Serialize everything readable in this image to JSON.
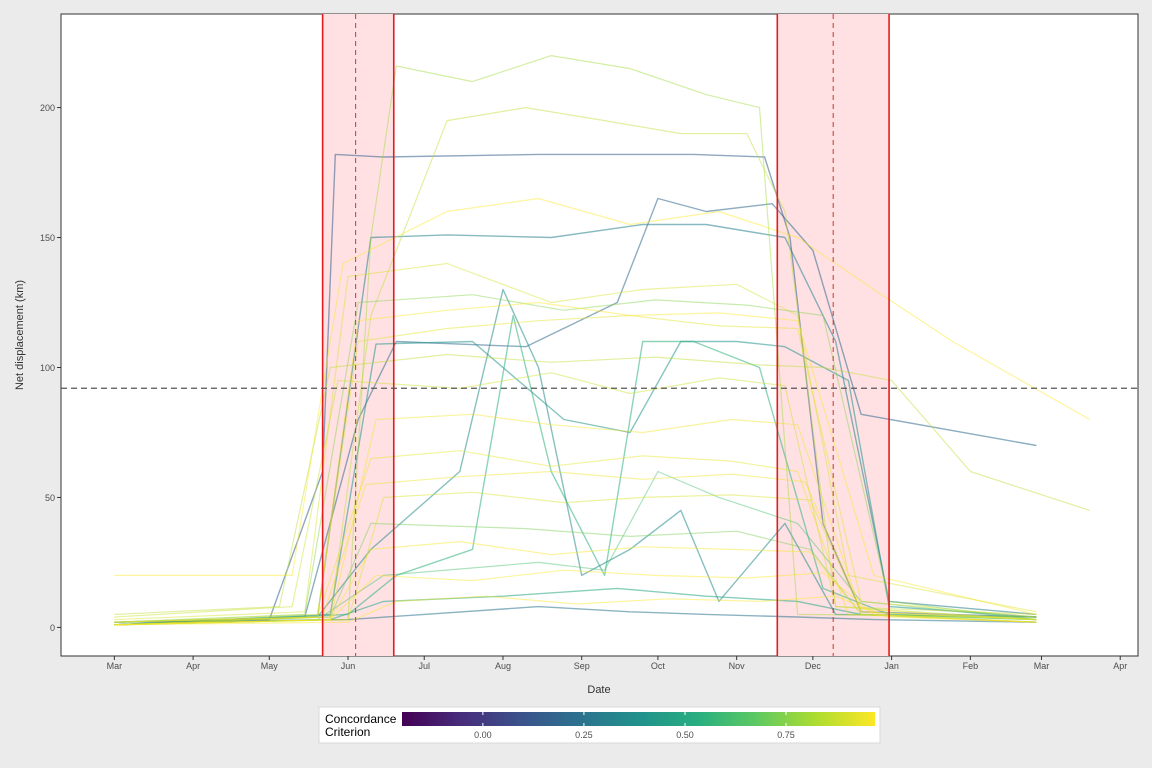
{
  "chart_data": {
    "type": "line",
    "title": "",
    "xlabel": "Date",
    "ylabel": "Net displacement (km)",
    "x_tick_labels": [
      "Mar",
      "Apr",
      "May",
      "Jun",
      "Jul",
      "Aug",
      "Sep",
      "Oct",
      "Nov",
      "Dec",
      "Jan",
      "Feb",
      "Mar",
      "Apr"
    ],
    "x_tick_dates": [
      "2013-03-01",
      "2013-04-01",
      "2013-05-01",
      "2013-06-01",
      "2013-07-01",
      "2013-08-01",
      "2013-09-01",
      "2013-10-01",
      "2013-11-01",
      "2013-12-01",
      "2014-01-01",
      "2014-02-01",
      "2014-03-01",
      "2014-04-01"
    ],
    "xlim": [
      "2013-02-08",
      "2014-04-08"
    ],
    "y_ticks": [
      0,
      50,
      100,
      150,
      200
    ],
    "ylim": [
      -11,
      236
    ],
    "grid": false,
    "reference_lines": {
      "horizontal_y": 92,
      "vertical_dashed": [
        "2013-06-04",
        "2013-12-09"
      ]
    },
    "shaded_windows": [
      {
        "start": "2013-05-22",
        "end": "2013-06-19"
      },
      {
        "start": "2013-11-17",
        "end": "2013-12-31"
      }
    ],
    "legend": {
      "title": "Concordance Criterion",
      "position": "bottom",
      "colorbar_min": -0.2,
      "colorbar_max": 0.97,
      "ticks": [
        "0.00",
        "0.25",
        "0.50",
        "0.75"
      ],
      "tick_values": [
        0,
        0.25,
        0.5,
        0.75
      ],
      "colors": [
        "#440154",
        "#472d7b",
        "#3b528b",
        "#2c728e",
        "#21918c",
        "#28ae80",
        "#5ec962",
        "#addc30",
        "#fde725"
      ]
    },
    "series": [
      {
        "concordance": 0.15,
        "x": [
          "2013-03-01",
          "2013-05-01",
          "2013-05-22",
          "2013-05-27",
          "2013-06-15",
          "2013-08-15",
          "2013-10-15",
          "2013-11-12",
          "2013-11-22",
          "2013-12-05",
          "2013-12-20",
          "2014-02-27"
        ],
        "y": [
          1,
          3,
          60,
          182,
          181,
          182,
          182,
          181,
          150,
          40,
          6,
          4
        ]
      },
      {
        "concordance": 0.2,
        "x": [
          "2013-03-01",
          "2013-05-15",
          "2013-06-05",
          "2013-06-20",
          "2013-08-10",
          "2013-09-15",
          "2013-10-01",
          "2013-10-20",
          "2013-11-15",
          "2013-12-01",
          "2013-12-20",
          "2014-02-27"
        ],
        "y": [
          1,
          4,
          80,
          110,
          108,
          125,
          165,
          160,
          163,
          145,
          82,
          70
        ]
      },
      {
        "concordance": 0.3,
        "x": [
          "2013-03-01",
          "2013-05-20",
          "2013-06-10",
          "2013-07-10",
          "2013-08-20",
          "2013-09-25",
          "2013-10-20",
          "2013-11-20",
          "2013-12-10",
          "2013-12-31",
          "2014-02-27"
        ],
        "y": [
          1,
          4,
          150,
          151,
          150,
          155,
          155,
          150,
          110,
          10,
          5
        ]
      },
      {
        "concordance": 0.4,
        "x": [
          "2013-03-01",
          "2013-05-25",
          "2013-06-12",
          "2013-07-20",
          "2013-08-25",
          "2013-09-20",
          "2013-10-10",
          "2013-11-01",
          "2013-11-20",
          "2013-12-15",
          "2013-12-31",
          "2014-02-27"
        ],
        "y": [
          1,
          5,
          109,
          110,
          80,
          75,
          110,
          110,
          108,
          95,
          8,
          4
        ]
      },
      {
        "concordance": 0.55,
        "x": [
          "2013-03-01",
          "2013-06-01",
          "2013-06-20",
          "2013-07-20",
          "2013-08-05",
          "2013-08-20",
          "2013-09-10",
          "2013-09-25",
          "2013-10-15",
          "2013-11-10",
          "2013-12-05",
          "2013-12-31",
          "2014-02-27"
        ],
        "y": [
          1,
          5,
          20,
          30,
          120,
          60,
          20,
          110,
          110,
          100,
          15,
          5,
          3
        ]
      },
      {
        "concordance": 0.35,
        "x": [
          "2013-03-01",
          "2013-05-20",
          "2013-06-10",
          "2013-07-15",
          "2013-08-01",
          "2013-08-15",
          "2013-09-01",
          "2013-09-20",
          "2013-10-10",
          "2013-10-25",
          "2013-11-20",
          "2013-12-10",
          "2014-02-27"
        ],
        "y": [
          2,
          4,
          30,
          60,
          130,
          100,
          20,
          30,
          45,
          10,
          40,
          5,
          4
        ]
      },
      {
        "concordance": 0.5,
        "x": [
          "2013-03-01",
          "2013-05-25",
          "2013-06-15",
          "2013-08-01",
          "2013-09-15",
          "2013-10-20",
          "2013-11-25",
          "2013-12-20",
          "2014-02-27"
        ],
        "y": [
          1,
          3,
          10,
          12,
          15,
          12,
          10,
          5,
          2
        ]
      },
      {
        "concordance": 0.25,
        "x": [
          "2013-03-01",
          "2013-06-01",
          "2013-07-01",
          "2013-08-15",
          "2013-09-20",
          "2013-10-20",
          "2013-11-25",
          "2013-12-25",
          "2014-02-27"
        ],
        "y": [
          2,
          3,
          5,
          8,
          6,
          5,
          4,
          3,
          2
        ]
      },
      {
        "concordance": 0.62,
        "x": [
          "2013-03-01",
          "2013-05-20",
          "2013-06-15",
          "2013-08-15",
          "2013-09-10",
          "2013-10-01",
          "2013-10-25",
          "2013-11-25",
          "2013-12-20",
          "2014-02-27"
        ],
        "y": [
          1,
          3,
          20,
          25,
          22,
          60,
          50,
          40,
          10,
          3
        ]
      },
      {
        "concordance": 0.72,
        "x": [
          "2013-03-01",
          "2013-05-25",
          "2013-06-10",
          "2013-08-10",
          "2013-09-20",
          "2013-11-01",
          "2013-11-30",
          "2013-12-20",
          "2014-02-27"
        ],
        "y": [
          2,
          4,
          40,
          38,
          35,
          37,
          30,
          5,
          3
        ]
      },
      {
        "concordance": 0.8,
        "x": [
          "2013-03-01",
          "2013-06-01",
          "2013-06-10",
          "2013-06-20",
          "2013-07-20",
          "2013-08-20",
          "2013-09-20",
          "2013-10-20",
          "2013-11-10",
          "2013-11-25",
          "2014-02-27"
        ],
        "y": [
          1,
          3,
          150,
          216,
          210,
          220,
          215,
          205,
          200,
          5,
          4
        ]
      },
      {
        "concordance": 0.85,
        "x": [
          "2013-03-01",
          "2013-05-25",
          "2013-06-10",
          "2013-07-10",
          "2013-08-10",
          "2013-09-10",
          "2013-10-10",
          "2013-11-05",
          "2013-11-20",
          "2013-12-10",
          "2014-02-27"
        ],
        "y": [
          1,
          4,
          120,
          195,
          200,
          195,
          190,
          190,
          160,
          8,
          3
        ]
      },
      {
        "concordance": 0.9,
        "x": [
          "2013-03-01",
          "2013-05-15",
          "2013-06-01",
          "2013-07-10",
          "2013-08-20",
          "2013-09-25",
          "2013-11-01",
          "2013-11-25",
          "2013-12-15",
          "2014-02-27"
        ],
        "y": [
          3,
          6,
          135,
          140,
          125,
          130,
          132,
          120,
          20,
          6
        ]
      },
      {
        "concordance": 0.92,
        "x": [
          "2013-03-01",
          "2013-05-20",
          "2013-06-05",
          "2013-07-10",
          "2013-08-15",
          "2013-09-20",
          "2013-10-25",
          "2013-11-25",
          "2013-12-20",
          "2014-02-27"
        ],
        "y": [
          2,
          5,
          110,
          115,
          118,
          120,
          116,
          115,
          10,
          4
        ]
      },
      {
        "concordance": 0.88,
        "x": [
          "2013-03-01",
          "2013-05-10",
          "2013-05-28",
          "2013-07-15",
          "2013-08-20",
          "2013-09-20",
          "2013-10-25",
          "2013-11-20",
          "2013-12-10",
          "2014-02-27"
        ],
        "y": [
          4,
          8,
          95,
          92,
          98,
          90,
          96,
          93,
          8,
          5
        ]
      },
      {
        "concordance": 0.95,
        "x": [
          "2013-03-01",
          "2013-05-25",
          "2013-06-12",
          "2013-07-20",
          "2013-08-20",
          "2013-09-25",
          "2013-10-30",
          "2013-11-25",
          "2013-12-20",
          "2014-02-27"
        ],
        "y": [
          1,
          3,
          80,
          82,
          78,
          75,
          80,
          78,
          6,
          3
        ]
      },
      {
        "concordance": 0.93,
        "x": [
          "2013-03-01",
          "2013-05-20",
          "2013-06-10",
          "2013-07-15",
          "2013-08-20",
          "2013-09-25",
          "2013-10-30",
          "2013-11-25",
          "2013-12-15",
          "2014-02-27"
        ],
        "y": [
          2,
          4,
          65,
          68,
          62,
          66,
          64,
          60,
          5,
          2
        ]
      },
      {
        "concordance": 0.9,
        "x": [
          "2013-03-01",
          "2013-06-01",
          "2013-06-15",
          "2013-07-20",
          "2013-08-25",
          "2013-09-25",
          "2013-10-30",
          "2013-11-30",
          "2013-12-20",
          "2014-02-27"
        ],
        "y": [
          1,
          3,
          50,
          52,
          48,
          50,
          51,
          49,
          6,
          3
        ]
      },
      {
        "concordance": 0.96,
        "x": [
          "2013-03-01",
          "2013-05-25",
          "2013-06-10",
          "2013-07-15",
          "2013-08-20",
          "2013-09-25",
          "2013-10-30",
          "2013-11-30",
          "2013-12-20",
          "2014-02-27"
        ],
        "y": [
          1,
          3,
          30,
          33,
          28,
          31,
          30,
          29,
          5,
          2
        ]
      },
      {
        "concordance": 0.85,
        "x": [
          "2013-03-01",
          "2013-05-05",
          "2013-05-25",
          "2013-07-10",
          "2013-08-20",
          "2013-09-30",
          "2013-11-10",
          "2013-12-05",
          "2014-01-01",
          "2014-02-01",
          "2014-03-20"
        ],
        "y": [
          5,
          8,
          100,
          105,
          102,
          104,
          101,
          100,
          95,
          60,
          45
        ]
      },
      {
        "concordance": 0.75,
        "x": [
          "2013-03-01",
          "2013-05-15",
          "2013-06-05",
          "2013-07-20",
          "2013-08-25",
          "2013-09-30",
          "2013-11-05",
          "2013-12-05",
          "2013-12-31",
          "2014-02-27"
        ],
        "y": [
          2,
          5,
          125,
          128,
          122,
          126,
          124,
          120,
          10,
          3
        ]
      },
      {
        "concordance": 0.98,
        "x": [
          "2013-03-01",
          "2013-05-10",
          "2013-05-30",
          "2013-07-10",
          "2013-08-15",
          "2013-09-20",
          "2013-10-25",
          "2013-11-25",
          "2013-12-25",
          "2014-01-25",
          "2014-03-20"
        ],
        "y": [
          20,
          20,
          140,
          160,
          165,
          155,
          160,
          150,
          130,
          110,
          80
        ]
      },
      {
        "concordance": 0.97,
        "x": [
          "2013-03-01",
          "2013-05-25",
          "2013-06-12",
          "2013-07-20",
          "2013-08-25",
          "2013-09-30",
          "2013-11-05",
          "2013-12-05",
          "2013-12-25",
          "2014-02-27"
        ],
        "y": [
          1,
          3,
          20,
          18,
          22,
          20,
          19,
          21,
          5,
          2
        ]
      },
      {
        "concordance": 0.97,
        "x": [
          "2013-03-01",
          "2013-06-01",
          "2013-06-20",
          "2013-07-25",
          "2013-08-30",
          "2013-10-05",
          "2013-11-10",
          "2013-12-10",
          "2013-12-30",
          "2014-02-27"
        ],
        "y": [
          1,
          2,
          10,
          12,
          9,
          11,
          10,
          12,
          4,
          2
        ]
      },
      {
        "concordance": 0.94,
        "x": [
          "2013-03-01",
          "2013-05-22",
          "2013-06-08",
          "2013-07-15",
          "2013-08-20",
          "2013-09-25",
          "2013-10-30",
          "2013-11-28",
          "2013-12-20",
          "2014-02-27"
        ],
        "y": [
          1,
          4,
          55,
          58,
          60,
          57,
          59,
          56,
          7,
          3
        ]
      },
      {
        "concordance": 0.99,
        "x": [
          "2013-03-01",
          "2013-05-20",
          "2013-06-05",
          "2013-07-10",
          "2013-08-15",
          "2013-09-20",
          "2013-10-25",
          "2013-11-25",
          "2013-12-25",
          "2014-02-27"
        ],
        "y": [
          2,
          4,
          118,
          122,
          125,
          120,
          121,
          118,
          20,
          5
        ]
      }
    ]
  }
}
